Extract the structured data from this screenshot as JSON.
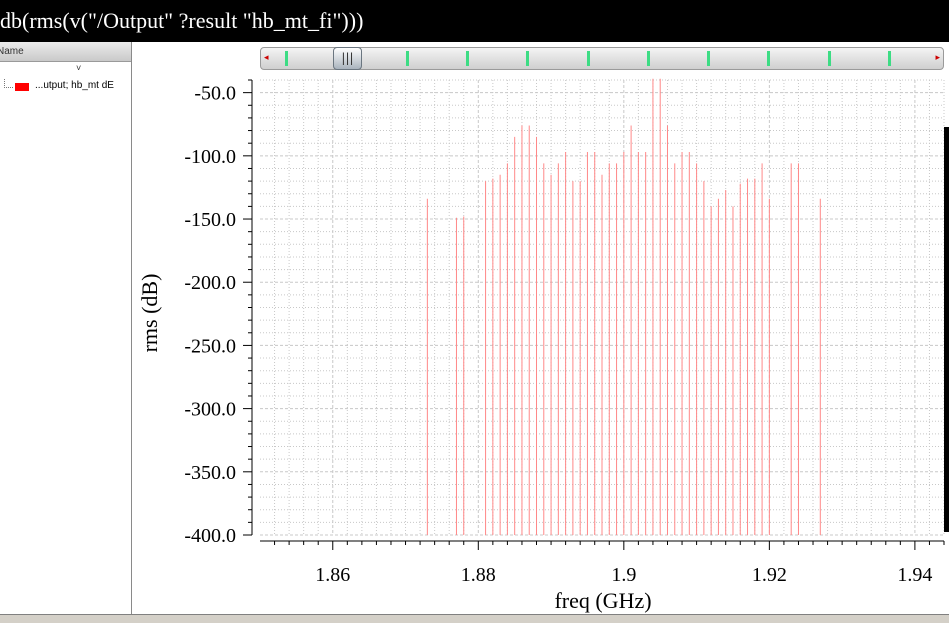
{
  "title": "db(rms(v(\"/Output\" ?result \"hb_mt_fi\")))",
  "legend": {
    "header": "Name",
    "sort_indicator": "˅",
    "trace_label": "...utput; hb_mt dE",
    "trace_color": "#ff0000"
  },
  "scroll": {
    "left_arrow": "◂",
    "right_arrow": "▸",
    "thumb": "|||",
    "tick_count": 11,
    "tick_color": "#3ddc84"
  },
  "chart_data": {
    "type": "bar",
    "title": "",
    "xlabel": "freq (GHz)",
    "ylabel": "rms (dB)",
    "xlim": [
      1.85,
      1.944
    ],
    "ylim": [
      -400,
      -40
    ],
    "grid": true,
    "xticks": [
      "1.86",
      "1.88",
      "1.9",
      "1.92",
      "1.94"
    ],
    "yticks": [
      "-50.0",
      "-100.0",
      "-150.0",
      "-200.0",
      "-250.0",
      "-300.0",
      "-350.0",
      "-400.0"
    ],
    "series": [
      {
        "color": "#ff8888",
        "x": [
          1.873,
          1.877,
          1.878,
          1.881,
          1.882,
          1.883,
          1.884,
          1.885,
          1.886,
          1.887,
          1.888,
          1.889,
          1.89,
          1.891,
          1.892,
          1.893,
          1.894,
          1.895,
          1.896,
          1.897,
          1.898,
          1.899,
          1.9,
          1.901,
          1.902,
          1.903,
          1.904,
          1.905,
          1.906,
          1.907,
          1.908,
          1.909,
          1.91,
          1.911,
          1.912,
          1.913,
          1.914,
          1.915,
          1.916,
          1.917,
          1.918,
          1.919,
          1.92,
          1.923,
          1.924,
          1.927
        ],
        "y": [
          -134,
          -149,
          -148,
          -120,
          -118,
          -115,
          -106,
          -85,
          -76,
          -76,
          -85,
          -106,
          -115,
          -106,
          -97,
          -120,
          -120,
          -97,
          -97,
          -115,
          -106,
          -106,
          -97,
          -76,
          -97,
          -97,
          -39,
          -39,
          -76,
          -106,
          -97,
          -97,
          -106,
          -120,
          -140,
          -134,
          -127,
          -140,
          -122,
          -118,
          -118,
          -106,
          -134,
          -106,
          -106,
          -134
        ]
      }
    ]
  }
}
